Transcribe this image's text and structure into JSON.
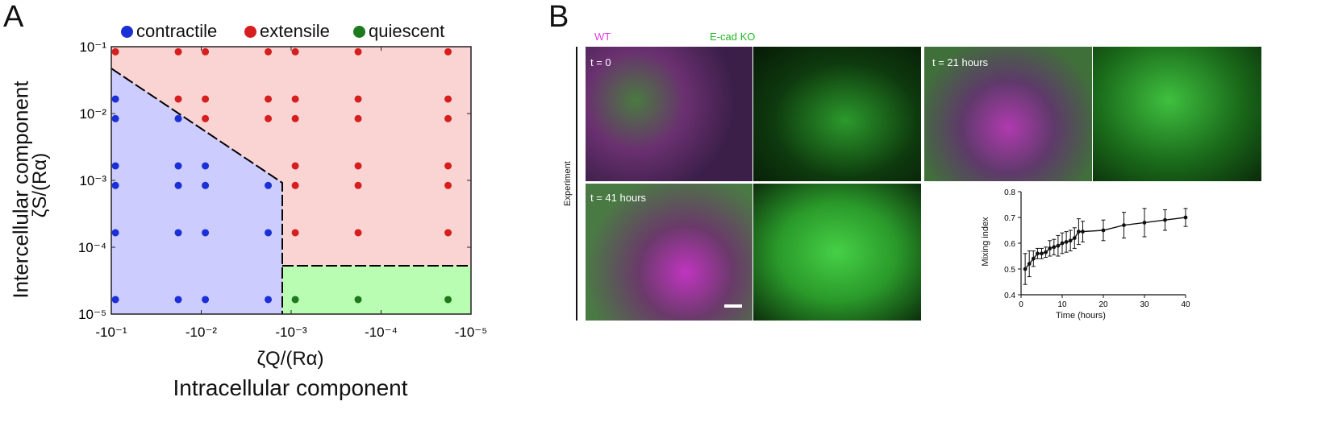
{
  "panel_a": {
    "letter": "A",
    "legend": [
      {
        "label": "contractile",
        "color": "#1a2fd6"
      },
      {
        "label": "extensile",
        "color": "#d71e1e"
      },
      {
        "label": "quiescent",
        "color": "#1c7a1c"
      }
    ],
    "ylabel_outer": "Intercellular component",
    "ylabel_inner": "ζS/(Rα)",
    "xlabel_inner": "ζQ/(Rα)",
    "xlabel_outer": "Intracellular component",
    "xticks": [
      "-10⁻¹",
      "-10⁻²",
      "-10⁻³",
      "-10⁻⁴",
      "-10⁻⁵"
    ],
    "yticks": [
      "10⁻¹",
      "10⁻²",
      "10⁻³",
      "10⁻⁴",
      "10⁻⁵"
    ],
    "region_colors": {
      "contractile": "#ccccff",
      "extensile": "#f9d4d3",
      "quiescent": "#b9fdb3"
    }
  },
  "chart_data": [
    {
      "type": "scatter",
      "title": "",
      "xlabel": "ζQ/(Rα)",
      "ylabel": "ζS/(Rα)",
      "x_scale": "log10 of -x (values are ζQ/(Rα))",
      "y_scale": "log",
      "xlim": [
        -0.1,
        -1e-05
      ],
      "ylim": [
        1e-05,
        0.1
      ],
      "x_ticks": [
        -0.1,
        -0.01,
        -0.001,
        -0.0001,
        -1e-05
      ],
      "y_ticks": [
        0.1,
        0.01,
        0.001,
        0.0001,
        1e-05
      ],
      "boundary_contractile_extensile": [
        [
          -0.1,
          0.06
        ],
        [
          -0.0012,
          0.001
        ],
        [
          -0.0012,
          1e-05
        ]
      ],
      "boundary_extensile_quiescent": [
        [
          -0.0012,
          4.5e-05
        ],
        [
          -1e-05,
          4.5e-05
        ]
      ],
      "series": [
        {
          "name": "contractile",
          "color": "#1a2fd6",
          "points": [
            [
              -0.09,
              0.0165
            ],
            [
              -0.09,
              0.0084
            ],
            [
              -0.09,
              0.00165
            ],
            [
              -0.09,
              0.00084
            ],
            [
              -0.09,
              0.000165
            ],
            [
              -0.09,
              1.65e-05
            ],
            [
              -0.018,
              0.0084
            ],
            [
              -0.018,
              0.00165
            ],
            [
              -0.018,
              0.00084
            ],
            [
              -0.018,
              0.000165
            ],
            [
              -0.018,
              1.65e-05
            ],
            [
              -0.009,
              0.00165
            ],
            [
              -0.009,
              0.00084
            ],
            [
              -0.009,
              0.000165
            ],
            [
              -0.009,
              1.65e-05
            ],
            [
              -0.0018,
              0.00084
            ],
            [
              -0.0018,
              0.000165
            ],
            [
              -0.0018,
              1.65e-05
            ]
          ]
        },
        {
          "name": "extensile",
          "color": "#d71e1e",
          "points": [
            [
              -0.09,
              0.084
            ],
            [
              -0.018,
              0.084
            ],
            [
              -0.018,
              0.0165
            ],
            [
              -0.009,
              0.084
            ],
            [
              -0.009,
              0.0165
            ],
            [
              -0.009,
              0.0084
            ],
            [
              -0.0018,
              0.084
            ],
            [
              -0.0018,
              0.0165
            ],
            [
              -0.0018,
              0.0084
            ],
            [
              -0.0009,
              0.084
            ],
            [
              -0.0009,
              0.0165
            ],
            [
              -0.0009,
              0.0084
            ],
            [
              -0.0009,
              0.00165
            ],
            [
              -0.0009,
              0.00084
            ],
            [
              -0.0009,
              0.000165
            ],
            [
              -0.00018,
              0.084
            ],
            [
              -0.00018,
              0.0165
            ],
            [
              -0.00018,
              0.0084
            ],
            [
              -0.00018,
              0.00165
            ],
            [
              -0.00018,
              0.00084
            ],
            [
              -0.00018,
              0.000165
            ],
            [
              -1.8e-05,
              0.084
            ],
            [
              -1.8e-05,
              0.0165
            ],
            [
              -1.8e-05,
              0.0084
            ],
            [
              -1.8e-05,
              0.00165
            ],
            [
              -1.8e-05,
              0.00084
            ],
            [
              -1.8e-05,
              0.000165
            ]
          ]
        },
        {
          "name": "quiescent",
          "color": "#1c7a1c",
          "points": [
            [
              -0.0009,
              1.65e-05
            ],
            [
              -0.00018,
              1.65e-05
            ],
            [
              -1.8e-05,
              1.65e-05
            ]
          ]
        }
      ]
    },
    {
      "type": "line",
      "title": "",
      "xlabel": "Time (hours)",
      "ylabel": "Mixing index",
      "xlim": [
        0,
        40
      ],
      "ylim": [
        0.4,
        0.8
      ],
      "x_ticks": [
        0,
        10,
        20,
        30,
        40
      ],
      "y_ticks": [
        0.4,
        0.5,
        0.6,
        0.7,
        0.8
      ],
      "series": [
        {
          "points": [
            [
              1,
              0.5,
              0.06
            ],
            [
              2,
              0.52,
              0.05
            ],
            [
              3,
              0.54,
              0.03
            ],
            [
              4,
              0.56,
              0.02
            ],
            [
              5,
              0.56,
              0.02
            ],
            [
              6,
              0.565,
              0.02
            ],
            [
              7,
              0.58,
              0.03
            ],
            [
              8,
              0.585,
              0.03
            ],
            [
              9,
              0.59,
              0.04
            ],
            [
              10,
              0.6,
              0.04
            ],
            [
              11,
              0.605,
              0.04
            ],
            [
              12,
              0.61,
              0.04
            ],
            [
              13,
              0.62,
              0.04
            ],
            [
              14,
              0.645,
              0.05
            ],
            [
              15,
              0.645,
              0.04
            ],
            [
              20,
              0.65,
              0.04
            ],
            [
              25,
              0.67,
              0.05
            ],
            [
              30,
              0.68,
              0.055
            ],
            [
              35,
              0.69,
              0.04
            ],
            [
              40,
              0.7,
              0.035
            ]
          ]
        }
      ]
    }
  ],
  "panel_b": {
    "letter": "B",
    "wt_label": "WT",
    "ecad_label": "E-cad KO",
    "side_label": "Experiment",
    "time_labels": [
      "t = 0",
      "t = 21 hours",
      "t = 41 hours"
    ],
    "colors": {
      "wt": "#e040e0",
      "ko": "#30d030"
    }
  }
}
